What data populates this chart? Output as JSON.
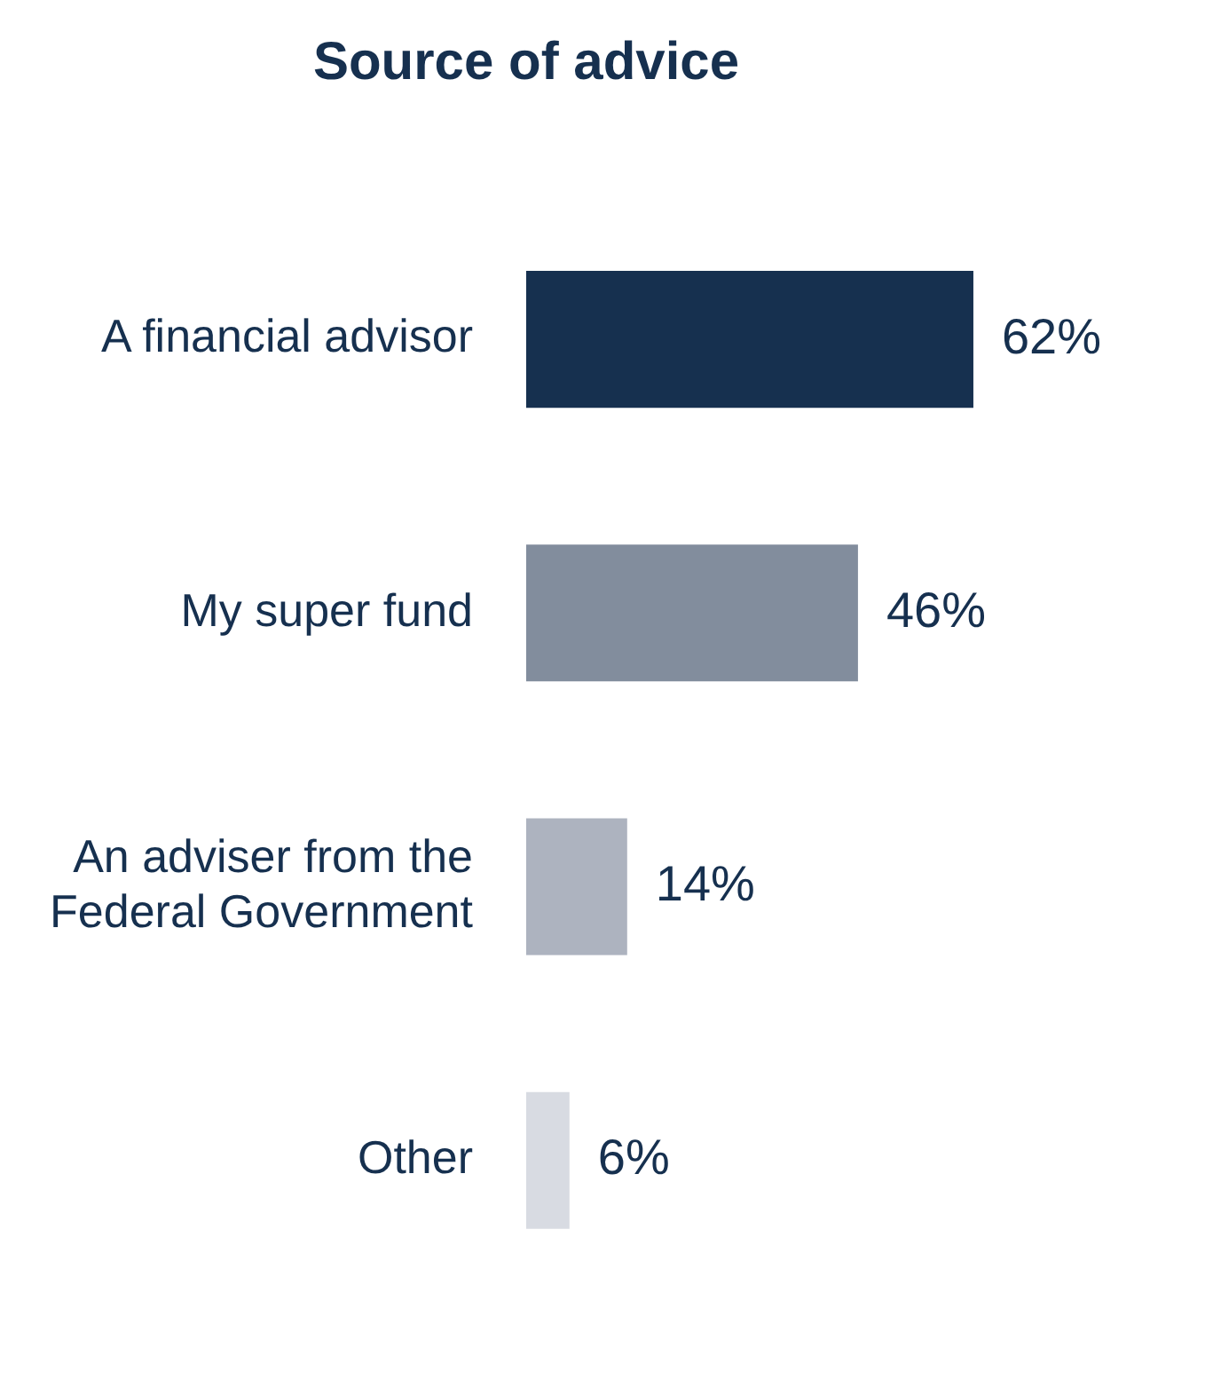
{
  "chart_data": {
    "type": "bar",
    "orientation": "horizontal",
    "title": "Source of advice",
    "categories": [
      "A financial advisor",
      "My super fund",
      "An adviser from the Federal Government",
      "Other"
    ],
    "values": [
      62,
      46,
      14,
      6
    ],
    "colors": [
      "#16304f",
      "#828d9d",
      "#adb3bf",
      "#d8dbe2"
    ],
    "value_labels": [
      "62%",
      "46%",
      "14%",
      "6%"
    ],
    "legend": false
  }
}
